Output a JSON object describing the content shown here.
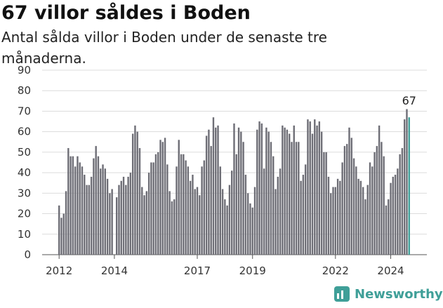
{
  "title": "67 villor såldes i Boden",
  "subtitle": "Antal sålda villor i Boden under de senaste tre månaderna.",
  "brand": {
    "name": "Newsworthy",
    "icon": "bar-chart-icon"
  },
  "chart_data": {
    "type": "bar",
    "title": "67 villor såldes i Boden",
    "subtitle": "Antal sålda villor i Boden under de senaste tre månaderna.",
    "ylim": [
      0,
      90
    ],
    "yticks": [
      0,
      10,
      20,
      30,
      40,
      50,
      60,
      70,
      80,
      90
    ],
    "xticks": [
      "2012",
      "2014",
      "2017",
      "2019",
      "2022",
      "2024"
    ],
    "grid": true,
    "bar_color": "#6e6e76",
    "highlight_color": "#3f9f98",
    "highlight_label": "67",
    "values": [
      24,
      18,
      20,
      31,
      52,
      48,
      48,
      43,
      48,
      45,
      43,
      39,
      34,
      34,
      38,
      47,
      53,
      48,
      42,
      44,
      42,
      37,
      30,
      32,
      0,
      28,
      34,
      36,
      38,
      34,
      38,
      40,
      59,
      63,
      60,
      52,
      33,
      29,
      31,
      40,
      45,
      45,
      49,
      50,
      56,
      55,
      57,
      44,
      31,
      26,
      27,
      43,
      56,
      49,
      49,
      46,
      43,
      36,
      39,
      32,
      33,
      29,
      43,
      46,
      58,
      61,
      53,
      67,
      62,
      63,
      43,
      32,
      27,
      24,
      34,
      41,
      64,
      49,
      62,
      60,
      55,
      39,
      30,
      25,
      23,
      33,
      61,
      65,
      64,
      42,
      62,
      60,
      55,
      48,
      32,
      38,
      42,
      63,
      62,
      61,
      59,
      55,
      63,
      55,
      55,
      36,
      39,
      44,
      66,
      65,
      59,
      66,
      63,
      65,
      60,
      50,
      50,
      38,
      30,
      33,
      33,
      37,
      36,
      45,
      53,
      54,
      62,
      57,
      47,
      43,
      37,
      36,
      33,
      27,
      34,
      45,
      43,
      50,
      53,
      63,
      55,
      48,
      24,
      27,
      35,
      38,
      39,
      42,
      49,
      52,
      66,
      71,
      67
    ]
  }
}
